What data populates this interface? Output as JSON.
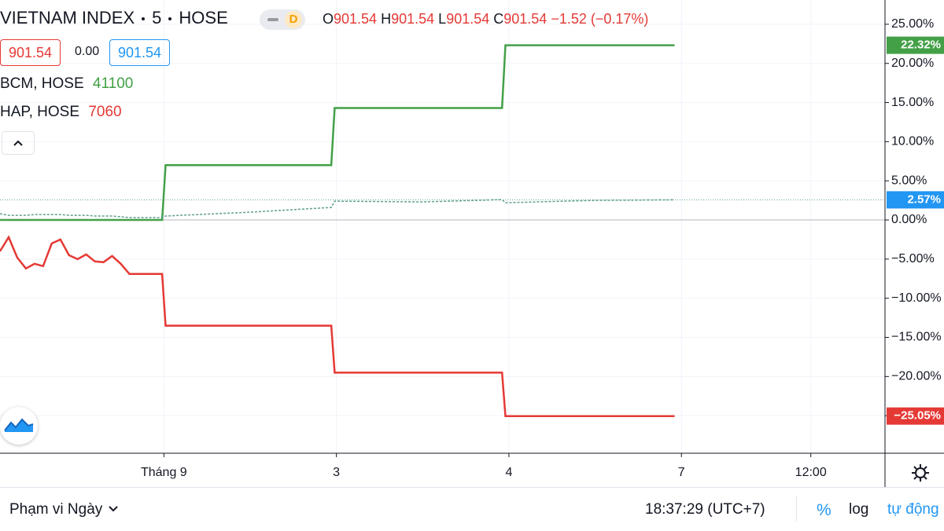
{
  "chart_data": {
    "type": "line",
    "x": [
      0.05,
      0.1,
      0.15,
      0.2,
      0.25,
      0.3,
      0.35,
      0.4,
      0.45,
      0.5,
      0.55,
      0.6,
      0.65,
      0.7,
      0.75,
      0.8,
      0.85,
      0.9,
      0.95,
      0.99,
      1.01,
      1.5,
      1.97,
      1.99,
      2.5,
      2.96,
      2.98,
      3.5,
      3.96
    ],
    "series": [
      {
        "name": "BCM, HOSE",
        "last_price": "41100",
        "color": "#43a047",
        "values": [
          0,
          0,
          0,
          0,
          0,
          0,
          0,
          0,
          0,
          0,
          0,
          0,
          0,
          0,
          0,
          0,
          0,
          0,
          0,
          0,
          7.0,
          7.0,
          7.0,
          14.3,
          14.3,
          14.3,
          22.32,
          22.32,
          22.32
        ],
        "last_value_label": "22.32%"
      },
      {
        "name": "HAP, HOSE",
        "last_price": "7060",
        "color": "#e53935",
        "values": [
          -4,
          -2.2,
          -4.8,
          -6.2,
          -5.6,
          -5.9,
          -3,
          -2.5,
          -4.5,
          -5,
          -4.4,
          -5.3,
          -5.4,
          -4.6,
          -5.6,
          -6.9,
          -6.9,
          -6.9,
          -6.9,
          -6.9,
          -13.5,
          -13.5,
          -13.5,
          -19.5,
          -19.5,
          -19.5,
          -25.05,
          -25.05,
          -25.05
        ],
        "last_value_label": "−25.05%"
      },
      {
        "color": "#2196f3",
        "line_color": "#5f9e8f",
        "values": [
          0.8,
          0.6,
          0.6,
          0.6,
          0.7,
          0.7,
          0.7,
          0.7,
          0.6,
          0.6,
          0.6,
          0.5,
          0.5,
          0.5,
          0.4,
          0.3,
          0.3,
          0.3,
          0.3,
          0.3,
          0.5,
          1.0,
          1.6,
          2.4,
          2.3,
          2.6,
          2.2,
          2.5,
          2.57
        ],
        "last_value_label": "2.57%"
      }
    ],
    "xlim": [
      0.05,
      5.18
    ],
    "xticks": [
      {
        "value": 1,
        "label": "Tháng 9"
      },
      {
        "value": 2,
        "label": "3"
      },
      {
        "value": 3,
        "label": "4"
      },
      {
        "value": 4,
        "label": "7"
      },
      {
        "value": 4.75,
        "label": "12:00"
      }
    ],
    "ylim": [
      -29.8,
      28.1
    ],
    "yticks": [
      {
        "value": 25,
        "label": "25.00%"
      },
      {
        "value": 20,
        "label": "20.00%"
      },
      {
        "value": 15,
        "label": "15.00%"
      },
      {
        "value": 10,
        "label": "10.00%"
      },
      {
        "value": 5,
        "label": "5.00%"
      },
      {
        "value": 0,
        "label": "0.00%"
      },
      {
        "value": -5,
        "label": "−5.00%"
      },
      {
        "value": -10,
        "label": "−10.00%"
      },
      {
        "value": -15,
        "label": "−15.00%"
      },
      {
        "value": -20,
        "label": "−20.00%"
      },
      {
        "value": -25,
        "label": "−25.00%"
      }
    ],
    "grid": true,
    "log_scale": false
  },
  "header": {
    "symbol": "VIETNAM INDEX",
    "interval": "5",
    "exchange": "HOSE",
    "resolution": "D",
    "ohlc": [
      {
        "key": "O",
        "value": "901.54"
      },
      {
        "key": "H",
        "value": "901.54"
      },
      {
        "key": "L",
        "value": "901.54"
      },
      {
        "key": "C",
        "value": "901.54"
      }
    ],
    "change": "−1.52 (−0.17%)",
    "price_boxes": [
      "901.54",
      "0.00",
      "901.54"
    ]
  },
  "footer": {
    "range": "Phạm vi Ngày",
    "time": "18:37:29 (UTC+7)",
    "percent": "%",
    "log": "log",
    "auto": "tự động"
  }
}
